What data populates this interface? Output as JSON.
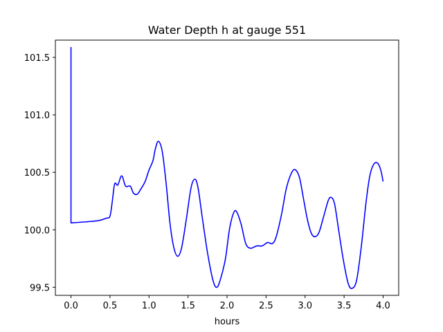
{
  "chart_data": {
    "type": "line",
    "title": "Water Depth h at gauge 551",
    "xlabel": "hours",
    "ylabel": "",
    "xlim": [
      -0.2,
      4.2
    ],
    "ylim": [
      99.43,
      101.65
    ],
    "xticks": [
      0.0,
      0.5,
      1.0,
      1.5,
      2.0,
      2.5,
      3.0,
      3.5,
      4.0
    ],
    "xtick_labels": [
      "0.0",
      "0.5",
      "1.0",
      "1.5",
      "2.0",
      "2.5",
      "3.0",
      "3.5",
      "4.0"
    ],
    "yticks": [
      99.5,
      100.0,
      100.5,
      101.0,
      101.5
    ],
    "ytick_labels": [
      "99.5",
      "100.0",
      "100.5",
      "101.0",
      "101.5"
    ],
    "grid": false,
    "series": [
      {
        "color": "#0000ff",
        "points": [
          [
            0.0,
            101.59
          ],
          [
            0.0,
            100.06
          ],
          [
            0.2,
            100.07
          ],
          [
            0.35,
            100.08
          ],
          [
            0.45,
            100.1
          ],
          [
            0.5,
            100.12
          ],
          [
            0.53,
            100.25
          ],
          [
            0.56,
            100.4
          ],
          [
            0.6,
            100.39
          ],
          [
            0.65,
            100.47
          ],
          [
            0.7,
            100.38
          ],
          [
            0.76,
            100.38
          ],
          [
            0.8,
            100.32
          ],
          [
            0.85,
            100.31
          ],
          [
            0.9,
            100.36
          ],
          [
            0.95,
            100.42
          ],
          [
            1.0,
            100.52
          ],
          [
            1.05,
            100.6
          ],
          [
            1.08,
            100.7
          ],
          [
            1.12,
            100.77
          ],
          [
            1.17,
            100.68
          ],
          [
            1.22,
            100.4
          ],
          [
            1.27,
            100.05
          ],
          [
            1.32,
            99.84
          ],
          [
            1.37,
            99.77
          ],
          [
            1.42,
            99.85
          ],
          [
            1.48,
            100.1
          ],
          [
            1.54,
            100.37
          ],
          [
            1.59,
            100.44
          ],
          [
            1.63,
            100.36
          ],
          [
            1.68,
            100.12
          ],
          [
            1.75,
            99.8
          ],
          [
            1.82,
            99.56
          ],
          [
            1.87,
            99.5
          ],
          [
            1.92,
            99.58
          ],
          [
            1.98,
            99.75
          ],
          [
            2.03,
            100.0
          ],
          [
            2.08,
            100.14
          ],
          [
            2.12,
            100.16
          ],
          [
            2.18,
            100.05
          ],
          [
            2.24,
            99.88
          ],
          [
            2.3,
            99.84
          ],
          [
            2.38,
            99.86
          ],
          [
            2.45,
            99.86
          ],
          [
            2.52,
            99.89
          ],
          [
            2.58,
            99.88
          ],
          [
            2.63,
            99.94
          ],
          [
            2.7,
            100.14
          ],
          [
            2.76,
            100.36
          ],
          [
            2.83,
            100.5
          ],
          [
            2.88,
            100.52
          ],
          [
            2.93,
            100.45
          ],
          [
            2.98,
            100.27
          ],
          [
            3.03,
            100.09
          ],
          [
            3.08,
            99.97
          ],
          [
            3.13,
            99.94
          ],
          [
            3.18,
            99.98
          ],
          [
            3.24,
            100.12
          ],
          [
            3.3,
            100.26
          ],
          [
            3.34,
            100.28
          ],
          [
            3.38,
            100.22
          ],
          [
            3.43,
            100.0
          ],
          [
            3.49,
            99.74
          ],
          [
            3.55,
            99.54
          ],
          [
            3.6,
            99.49
          ],
          [
            3.66,
            99.56
          ],
          [
            3.72,
            99.85
          ],
          [
            3.78,
            100.23
          ],
          [
            3.83,
            100.47
          ],
          [
            3.88,
            100.57
          ],
          [
            3.93,
            100.58
          ],
          [
            3.97,
            100.52
          ],
          [
            4.0,
            100.42
          ]
        ]
      }
    ]
  }
}
